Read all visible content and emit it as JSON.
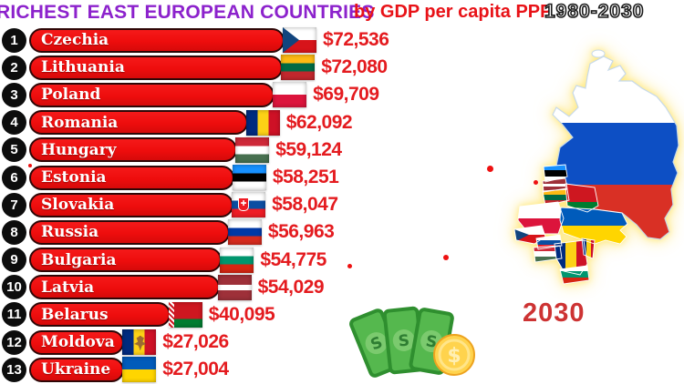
{
  "header": {
    "title": "RICHEST EAST EUROPEAN COUNTRIES",
    "subtitle": "by GDP per capita PPP",
    "period": "1980-2030"
  },
  "map": {
    "year_label": "2030"
  },
  "chart_data": {
    "type": "bar",
    "orientation": "horizontal",
    "title": "RICHEST EAST EUROPEAN COUNTRIES by GDP per capita PPP",
    "period": "1980-2030",
    "current_year": "2030",
    "unit": "USD, GDP per capita PPP",
    "categories": [
      "Czechia",
      "Lithuania",
      "Poland",
      "Romania",
      "Hungary",
      "Estonia",
      "Slovakia",
      "Russia",
      "Bulgaria",
      "Latvia",
      "Belarus",
      "Moldova",
      "Ukraine"
    ],
    "values": [
      72536,
      72080,
      69709,
      62092,
      59124,
      58251,
      58047,
      56963,
      54775,
      54029,
      40095,
      27026,
      27004
    ],
    "value_labels": [
      "$72,536",
      "$72,080",
      "$69,709",
      "$62,092",
      "$59,124",
      "$58,251",
      "$58,047",
      "$56,963",
      "$54,775",
      "$54,029",
      "$40,095",
      "$27,026",
      "$27,004"
    ],
    "rows": [
      {
        "rank": "1",
        "country": "Czechia",
        "value": 72536,
        "value_label": "$72,536",
        "flag": "czechia"
      },
      {
        "rank": "2",
        "country": "Lithuania",
        "value": 72080,
        "value_label": "$72,080",
        "flag": "lithuania"
      },
      {
        "rank": "3",
        "country": "Poland",
        "value": 69709,
        "value_label": "$69,709",
        "flag": "poland"
      },
      {
        "rank": "4",
        "country": "Romania",
        "value": 62092,
        "value_label": "$62,092",
        "flag": "romania"
      },
      {
        "rank": "5",
        "country": "Hungary",
        "value": 59124,
        "value_label": "$59,124",
        "flag": "hungary"
      },
      {
        "rank": "6",
        "country": "Estonia",
        "value": 58251,
        "value_label": "$58,251",
        "flag": "estonia"
      },
      {
        "rank": "7",
        "country": "Slovakia",
        "value": 58047,
        "value_label": "$58,047",
        "flag": "slovakia"
      },
      {
        "rank": "8",
        "country": "Russia",
        "value": 56963,
        "value_label": "$56,963",
        "flag": "russia"
      },
      {
        "rank": "9",
        "country": "Bulgaria",
        "value": 54775,
        "value_label": "$54,775",
        "flag": "bulgaria"
      },
      {
        "rank": "10",
        "country": "Latvia",
        "value": 54029,
        "value_label": "$54,029",
        "flag": "latvia"
      },
      {
        "rank": "11",
        "country": "Belarus",
        "value": 40095,
        "value_label": "$40,095",
        "flag": "belarus"
      },
      {
        "rank": "12",
        "country": "Moldova",
        "value": 27026,
        "value_label": "$27,026",
        "flag": "moldova"
      },
      {
        "rank": "13",
        "country": "Ukraine",
        "value": 27004,
        "value_label": "$27,004",
        "flag": "ukraine"
      }
    ]
  }
}
